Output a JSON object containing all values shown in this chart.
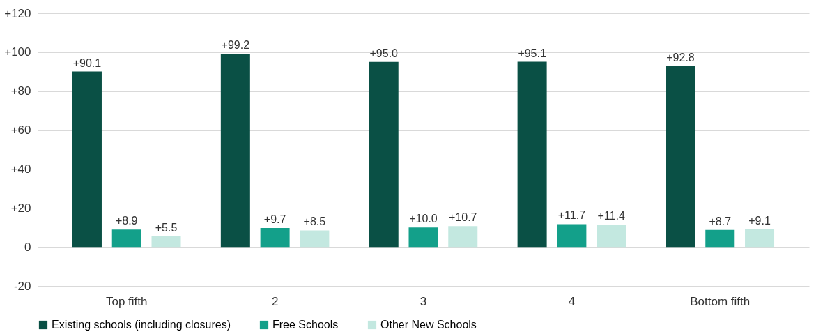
{
  "chart_data": {
    "type": "bar",
    "categories": [
      "Top fifth",
      "2",
      "3",
      "4",
      "Bottom fifth"
    ],
    "series": [
      {
        "name": "Existing schools (including closures)",
        "color": "#0a5045",
        "values": [
          90.1,
          99.2,
          95.0,
          95.1,
          92.8
        ],
        "value_labels": [
          "+90.1",
          "+99.2",
          "+95.0",
          "+95.1",
          "+92.8"
        ]
      },
      {
        "name": "Free Schools",
        "color": "#13a08a",
        "values": [
          8.9,
          9.7,
          10.0,
          11.7,
          8.7
        ],
        "value_labels": [
          "+8.9",
          "+9.7",
          "+10.0",
          "+11.7",
          "+8.7"
        ]
      },
      {
        "name": "Other New Schools",
        "color": "#c3e8e0",
        "values": [
          5.5,
          8.5,
          10.7,
          11.4,
          9.1
        ],
        "value_labels": [
          "+5.5",
          "+8.5",
          "+10.7",
          "+11.4",
          "+9.1"
        ]
      }
    ],
    "ylim": [
      -20,
      120
    ],
    "yticks": [
      {
        "value": -20,
        "label": "-20"
      },
      {
        "value": 0,
        "label": "0"
      },
      {
        "value": 20,
        "label": "+20"
      },
      {
        "value": 40,
        "label": "+40"
      },
      {
        "value": 60,
        "label": "+60"
      },
      {
        "value": 80,
        "label": "+80"
      },
      {
        "value": 100,
        "label": "+100"
      },
      {
        "value": 120,
        "label": "+120"
      }
    ],
    "grid": "y",
    "legend": "bottom"
  }
}
